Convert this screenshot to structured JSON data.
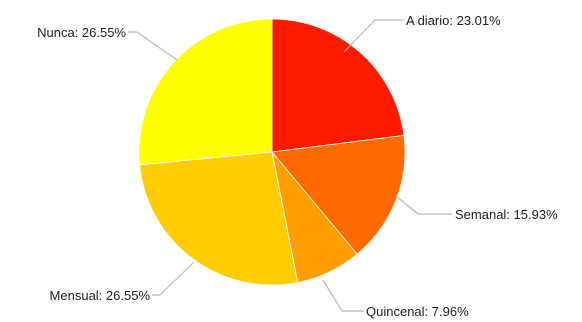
{
  "chart_data": {
    "type": "pie",
    "slices": [
      {
        "label": "A diario",
        "value": 23.01,
        "display": "A diario: 23.01%",
        "color": "#ff1a00"
      },
      {
        "label": "Semanal",
        "value": 15.93,
        "display": "Semanal: 15.93%",
        "color": "#ff6a00"
      },
      {
        "label": "Quincenal",
        "value": 7.96,
        "display": "Quincenal: 7.96%",
        "color": "#ff9e00"
      },
      {
        "label": "Mensual",
        "value": 26.55,
        "display": "Mensual: 26.55%",
        "color": "#ffcc00"
      },
      {
        "label": "Nunca",
        "value": 26.55,
        "display": "Nunca: 26.55%",
        "color": "#ffff00"
      }
    ],
    "start_angle": "top",
    "direction": "clockwise",
    "legend": "none",
    "labels_outside_with_leader_lines": true
  }
}
